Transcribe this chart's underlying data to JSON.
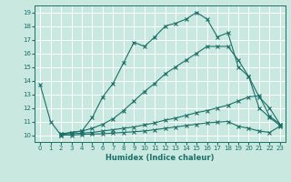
{
  "xlabel": "Humidex (Indice chaleur)",
  "bg_color": "#c8e8e0",
  "grid_color": "#ffffff",
  "line_color": "#1a7068",
  "xlim": [
    -0.5,
    23.5
  ],
  "ylim": [
    9.5,
    19.5
  ],
  "xticks": [
    0,
    1,
    2,
    3,
    4,
    5,
    6,
    7,
    8,
    9,
    10,
    11,
    12,
    13,
    14,
    15,
    16,
    17,
    18,
    19,
    20,
    21,
    22,
    23
  ],
  "yticks": [
    10,
    11,
    12,
    13,
    14,
    15,
    16,
    17,
    18,
    19
  ],
  "curve1_x": [
    0,
    1,
    2,
    3,
    4,
    5,
    6,
    7,
    8,
    9,
    10,
    11,
    12,
    13,
    14,
    15,
    16,
    17,
    18,
    19,
    20,
    21,
    22,
    23
  ],
  "curve1_y": [
    13.7,
    11.0,
    10.0,
    10.2,
    10.3,
    11.3,
    12.8,
    13.8,
    15.3,
    16.8,
    16.5,
    17.2,
    18.0,
    18.2,
    18.5,
    19.0,
    18.5,
    17.2,
    17.5,
    15.0,
    14.3,
    12.0,
    11.3,
    10.7
  ],
  "curve2_x": [
    2,
    3,
    4,
    5,
    6,
    7,
    8,
    9,
    10,
    11,
    12,
    13,
    14,
    15,
    16,
    17,
    18,
    19,
    20,
    21,
    22,
    23
  ],
  "curve2_y": [
    10.1,
    10.2,
    10.3,
    10.5,
    10.8,
    11.2,
    11.8,
    12.5,
    13.2,
    13.8,
    14.5,
    15.0,
    15.5,
    16.0,
    16.5,
    16.5,
    16.5,
    15.5,
    14.3,
    12.8,
    12.0,
    10.8
  ],
  "curve3_x": [
    2,
    3,
    4,
    5,
    6,
    7,
    8,
    9,
    10,
    11,
    12,
    13,
    14,
    15,
    16,
    17,
    18,
    19,
    20,
    21,
    22,
    23
  ],
  "curve3_y": [
    10.1,
    10.1,
    10.15,
    10.2,
    10.3,
    10.4,
    10.5,
    10.6,
    10.75,
    10.9,
    11.1,
    11.25,
    11.45,
    11.65,
    11.8,
    12.0,
    12.2,
    12.5,
    12.8,
    12.9,
    11.4,
    10.8
  ],
  "curve4_x": [
    2,
    3,
    4,
    5,
    6,
    7,
    8,
    9,
    10,
    11,
    12,
    13,
    14,
    15,
    16,
    17,
    18,
    19,
    20,
    21,
    22,
    23
  ],
  "curve4_y": [
    10.0,
    10.0,
    10.05,
    10.08,
    10.1,
    10.15,
    10.2,
    10.25,
    10.3,
    10.4,
    10.5,
    10.6,
    10.7,
    10.8,
    10.9,
    10.95,
    11.0,
    10.65,
    10.5,
    10.3,
    10.2,
    10.65
  ]
}
